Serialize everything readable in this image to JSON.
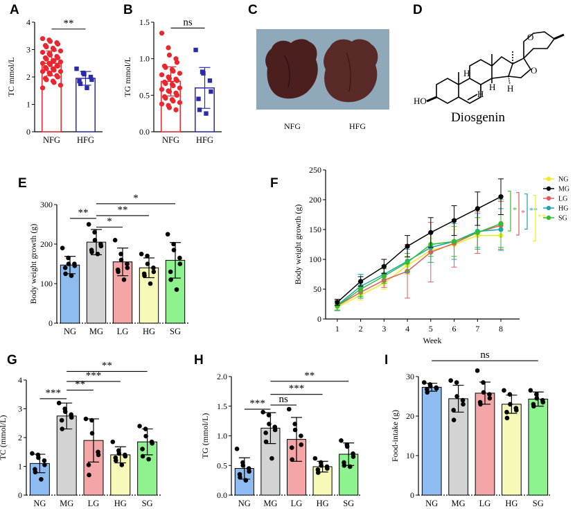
{
  "figure": {
    "panel_labels": [
      "A",
      "B",
      "C",
      "D",
      "E",
      "F",
      "G",
      "H",
      "I"
    ],
    "panel_c": {
      "labels": [
        "NFG",
        "HFG"
      ],
      "liver_colors": [
        "#4a1f1e",
        "#5a2a28"
      ],
      "background": "#8fa9bb"
    },
    "panel_d": {
      "compound_name": "Diosgenin",
      "atoms": {
        "ho": "HO",
        "h": "H",
        "o": "O"
      }
    }
  },
  "chart_data": [
    {
      "id": "A",
      "type": "bar",
      "title": "",
      "xlabel": "",
      "ylabel": "TC mmol/L",
      "ylim": [
        0,
        4
      ],
      "yticks": [
        0,
        1,
        2,
        3,
        4
      ],
      "categories": [
        "NFG",
        "HFG"
      ],
      "values": [
        2.5,
        1.95
      ],
      "errors": [
        0.45,
        0.25
      ],
      "colors": [
        "#e8272e",
        "#2c2ba7"
      ],
      "marker": [
        "circle",
        "square"
      ],
      "points": [
        [
          3.4,
          3.35,
          3.3,
          3.25,
          3.2,
          3.15,
          3.1,
          3.05,
          3.0,
          2.95,
          2.9,
          2.85,
          2.8,
          2.75,
          2.7,
          2.7,
          2.65,
          2.6,
          2.6,
          2.55,
          2.5,
          2.5,
          2.45,
          2.4,
          2.4,
          2.35,
          2.3,
          2.3,
          2.25,
          2.2,
          2.2,
          2.15,
          2.1,
          2.05,
          2.0,
          1.95,
          1.9,
          1.85,
          1.8,
          1.7,
          1.6
        ],
        [
          2.3,
          2.15,
          2.1,
          2.0,
          1.9,
          1.85,
          1.75,
          1.6
        ]
      ],
      "comparisons": [
        {
          "from": 0,
          "to": 1,
          "label": "**",
          "y": 3.75
        }
      ]
    },
    {
      "id": "B",
      "type": "bar",
      "title": "",
      "xlabel": "",
      "ylabel": "TG mmol/L",
      "ylim": [
        0,
        1.5
      ],
      "yticks": [
        0.0,
        0.5,
        1.0,
        1.5
      ],
      "categories": [
        "NFG",
        "HFG"
      ],
      "values": [
        0.69,
        0.6
      ],
      "errors": [
        0.2,
        0.28
      ],
      "colors": [
        "#e8272e",
        "#2c2ba7"
      ],
      "marker": [
        "circle",
        "square"
      ],
      "points": [
        [
          1.35,
          1.15,
          1.05,
          1.0,
          0.95,
          0.9,
          0.88,
          0.85,
          0.83,
          0.8,
          0.78,
          0.75,
          0.73,
          0.72,
          0.7,
          0.68,
          0.66,
          0.65,
          0.63,
          0.6,
          0.58,
          0.56,
          0.55,
          0.53,
          0.5,
          0.48,
          0.46,
          0.44,
          0.42,
          0.4,
          0.38,
          0.36,
          0.33,
          0.3
        ],
        [
          1.12,
          0.82,
          0.8,
          0.7,
          0.55,
          0.45,
          0.3,
          0.25
        ]
      ],
      "comparisons": [
        {
          "from": 0,
          "to": 1,
          "label": "ns",
          "y": 1.42
        }
      ]
    },
    {
      "id": "E",
      "type": "bar",
      "title": "",
      "xlabel": "",
      "ylabel": "Body weight growth (g)",
      "ylim": [
        0,
        300
      ],
      "yticks": [
        0,
        100,
        200,
        300
      ],
      "categories": [
        "NG",
        "MG",
        "LG",
        "HG",
        "SG"
      ],
      "values": [
        147,
        205,
        155,
        140,
        159
      ],
      "errors": [
        22,
        32,
        35,
        25,
        45
      ],
      "colors": [
        "#8fbcf0",
        "#d3d3d3",
        "#f4a5a6",
        "#f7f9b9",
        "#8ef28e"
      ],
      "points": [
        [
          190,
          165,
          150,
          150,
          145,
          140,
          125,
          120
        ],
        [
          250,
          230,
          210,
          200,
          195,
          185,
          180,
          175
        ],
        [
          210,
          175,
          160,
          150,
          140,
          135,
          130,
          110
        ],
        [
          175,
          170,
          150,
          140,
          130,
          125,
          120,
          100
        ],
        [
          225,
          200,
          185,
          165,
          150,
          130,
          110,
          85
        ]
      ],
      "comparisons": [
        {
          "from": 0,
          "to": 1,
          "label": "**",
          "y": 265
        },
        {
          "from": 1,
          "to": 2,
          "label": "*",
          "y": 243
        },
        {
          "from": 1,
          "to": 3,
          "label": "**",
          "y": 272
        },
        {
          "from": 1,
          "to": 4,
          "label": "*",
          "y": 302
        }
      ]
    },
    {
      "id": "F",
      "type": "line",
      "title": "",
      "xlabel": "Week",
      "ylabel": "Body weight growth (g)",
      "ylim": [
        0,
        250
      ],
      "yticks": [
        0,
        50,
        100,
        150,
        200,
        250
      ],
      "x": [
        1,
        2,
        3,
        4,
        5,
        6,
        7,
        8
      ],
      "series": [
        {
          "name": "NG",
          "color": "#f0e91f",
          "values": [
            20,
            40,
            60,
            90,
            115,
            125,
            140,
            140
          ],
          "errors": [
            6,
            8,
            10,
            15,
            20,
            25,
            30,
            20
          ]
        },
        {
          "name": "MG",
          "color": "#000000",
          "values": [
            28,
            63,
            88,
            122,
            145,
            165,
            185,
            205
          ],
          "errors": [
            5,
            8,
            12,
            18,
            25,
            25,
            28,
            30
          ]
        },
        {
          "name": "LG",
          "color": "#e45a5a",
          "values": [
            22,
            45,
            65,
            80,
            112,
            127,
            145,
            157
          ],
          "errors": [
            8,
            10,
            12,
            45,
            50,
            40,
            35,
            40
          ]
        },
        {
          "name": "HG",
          "color": "#1aa3b5",
          "values": [
            23,
            55,
            75,
            97,
            120,
            130,
            147,
            150
          ],
          "errors": [
            8,
            20,
            15,
            20,
            25,
            30,
            30,
            35
          ]
        },
        {
          "name": "SG",
          "color": "#2fbf2f",
          "values": [
            22,
            50,
            72,
            95,
            125,
            130,
            145,
            160
          ],
          "errors": [
            8,
            12,
            12,
            15,
            20,
            25,
            25,
            40
          ]
        }
      ],
      "significance": [
        {
          "series": "LG",
          "label": "*",
          "color": "#2fbf2f"
        },
        {
          "series": "HG",
          "label": "*",
          "color": "#e45a5a"
        },
        {
          "series": "SG",
          "label": "**",
          "color": "#1aa3b5"
        },
        {
          "series": "NG",
          "label": "**",
          "color": "#f0e91f"
        }
      ]
    },
    {
      "id": "G",
      "type": "bar",
      "title": "",
      "xlabel": "",
      "ylabel": "TC (mmol/L)",
      "ylim": [
        0,
        4
      ],
      "yticks": [
        0,
        1,
        2,
        3,
        4
      ],
      "categories": [
        "NG",
        "MG",
        "LG",
        "HG",
        "SG"
      ],
      "values": [
        1.1,
        2.75,
        1.9,
        1.4,
        1.85
      ],
      "errors": [
        0.32,
        0.45,
        0.75,
        0.28,
        0.45
      ],
      "colors": [
        "#8fbcf0",
        "#d3d3d3",
        "#f4a5a6",
        "#f7f9b9",
        "#8ef28e"
      ],
      "points": [
        [
          1.45,
          1.4,
          1.3,
          1.2,
          1.05,
          0.9,
          0.8,
          0.55
        ],
        [
          3.2,
          3.0,
          2.9,
          2.8,
          2.7,
          2.6,
          2.3
        ],
        [
          2.65,
          2.6,
          2.15,
          1.5,
          1.4,
          1.05,
          0.7
        ],
        [
          1.85,
          1.55,
          1.45,
          1.4,
          1.35,
          1.3,
          1.2,
          1.05
        ],
        [
          2.4,
          2.3,
          2.05,
          1.85,
          1.8,
          1.6,
          1.35,
          1.25
        ]
      ],
      "comparisons": [
        {
          "from": 0,
          "to": 1,
          "label": "***",
          "y": 3.35
        },
        {
          "from": 1,
          "to": 2,
          "label": "**",
          "y": 3.65
        },
        {
          "from": 1,
          "to": 3,
          "label": "***",
          "y": 3.95
        },
        {
          "from": 1,
          "to": 4,
          "label": "**",
          "y": 4.3
        }
      ]
    },
    {
      "id": "H",
      "type": "bar",
      "title": "",
      "xlabel": "",
      "ylabel": "TG (mmol/L)",
      "ylim": [
        0,
        2.0
      ],
      "yticks": [
        0.0,
        0.5,
        1.0,
        1.5,
        2.0
      ],
      "categories": [
        "NG",
        "MG",
        "LG",
        "HG",
        "SG"
      ],
      "values": [
        0.45,
        1.13,
        0.94,
        0.48,
        0.69
      ],
      "errors": [
        0.18,
        0.26,
        0.37,
        0.09,
        0.19
      ],
      "colors": [
        "#8fbcf0",
        "#d3d3d3",
        "#f4a5a6",
        "#f7f9b9",
        "#8ef28e"
      ],
      "points": [
        [
          0.78,
          0.55,
          0.5,
          0.45,
          0.4,
          0.35,
          0.3,
          0.25
        ],
        [
          1.4,
          1.35,
          1.2,
          1.15,
          1.1,
          1.05,
          0.9,
          0.62
        ],
        [
          1.45,
          1.2,
          1.1,
          1.0,
          0.85,
          0.8,
          0.6
        ],
        [
          0.62,
          0.55,
          0.5,
          0.48,
          0.45,
          0.43,
          0.38
        ],
        [
          0.92,
          0.85,
          0.82,
          0.7,
          0.65,
          0.55,
          0.5,
          0.48
        ]
      ],
      "comparisons": [
        {
          "from": 0,
          "to": 1,
          "label": "***",
          "y": 1.45
        },
        {
          "from": 1,
          "to": 2,
          "label": "ns",
          "y": 1.52
        },
        {
          "from": 1,
          "to": 3,
          "label": "***",
          "y": 1.7
        },
        {
          "from": 1,
          "to": 4,
          "label": "**",
          "y": 1.92
        }
      ]
    },
    {
      "id": "I",
      "type": "bar",
      "title": "",
      "xlabel": "",
      "ylabel": "Food-intake (g)",
      "ylim": [
        0,
        30
      ],
      "yticks": [
        0,
        10,
        20,
        30
      ],
      "categories": [
        "NG",
        "MG",
        "LG",
        "HG",
        "SG"
      ],
      "values": [
        27.3,
        24.4,
        25.8,
        23.0,
        24.3
      ],
      "errors": [
        1.0,
        3.4,
        2.8,
        2.3,
        1.8
      ],
      "colors": [
        "#8fbcf0",
        "#d3d3d3",
        "#f4a5a6",
        "#f7f9b9",
        "#8ef28e"
      ],
      "points": [
        [
          28.5,
          28.0,
          27.6,
          27.2,
          27.0,
          26.8,
          26.0
        ],
        [
          29.0,
          28.5,
          25.0,
          24.0,
          23.0,
          21.5,
          19.0
        ],
        [
          31.5,
          28.5,
          26.0,
          25.5,
          24.5,
          23.5,
          23.0
        ],
        [
          26.5,
          25.5,
          23.0,
          22.0,
          21.5,
          21.0,
          19.5
        ],
        [
          26.5,
          25.5,
          24.5,
          24.0,
          23.5,
          23.0,
          22.5
        ]
      ],
      "comparisons": [
        {
          "from": 0,
          "to": 4,
          "label": "ns",
          "y": 34
        }
      ]
    }
  ]
}
